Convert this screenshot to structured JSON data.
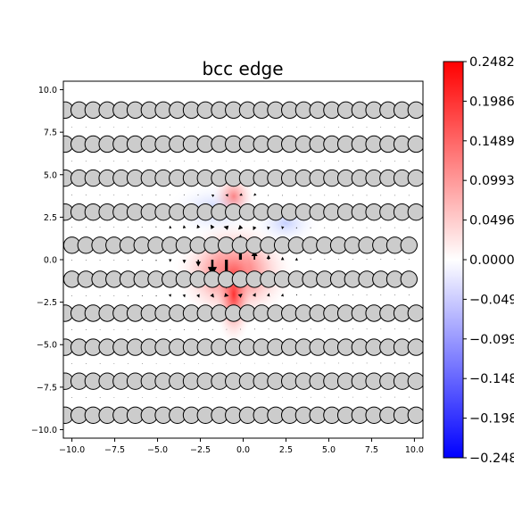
{
  "chart_data": {
    "type": "scatter",
    "title": "bcc edge",
    "xlabel": "",
    "ylabel": "",
    "xlim": [
      -10.5,
      10.5
    ],
    "ylim": [
      -10.5,
      10.5
    ],
    "xticks": [
      -10.0,
      -7.5,
      -5.0,
      -2.5,
      0.0,
      2.5,
      5.0,
      7.5,
      10.0
    ],
    "xtick_labels": [
      "−10.0",
      "−7.5",
      "−5.0",
      "−2.5",
      "0.0",
      "2.5",
      "5.0",
      "7.5",
      "10.0"
    ],
    "yticks": [
      10.0,
      7.5,
      5.0,
      2.5,
      0.0,
      -2.5,
      -5.0,
      -7.5,
      -10.0
    ],
    "ytick_labels": [
      "10.0",
      "7.5",
      "5.0",
      "2.5",
      "0.0",
      "−2.5",
      "−5.0",
      "−7.5",
      "−10.0"
    ],
    "grid": false,
    "background_field": "dislocation strain field (blue–white–red colormap)",
    "atom_rows": [
      {
        "y": 8.8,
        "x_start": -10.4,
        "step": 0.82,
        "count": 26
      },
      {
        "y": 6.8,
        "x_start": -10.4,
        "step": 0.82,
        "count": 26
      },
      {
        "y": 4.8,
        "x_start": -10.4,
        "step": 0.82,
        "count": 26
      },
      {
        "y": 2.8,
        "x_start": -10.4,
        "step": 0.82,
        "count": 26
      },
      {
        "y": 0.85,
        "x_start": -10.0,
        "step": 0.82,
        "count": 25
      },
      {
        "y": -1.15,
        "x_start": -10.0,
        "step": 0.82,
        "count": 25
      },
      {
        "y": -3.15,
        "x_start": -10.4,
        "step": 0.82,
        "count": 26
      },
      {
        "y": -5.15,
        "x_start": -10.4,
        "step": 0.82,
        "count": 26
      },
      {
        "y": -7.15,
        "x_start": -10.4,
        "step": 0.82,
        "count": 26
      },
      {
        "y": -9.15,
        "x_start": -10.4,
        "step": 0.82,
        "count": 26
      }
    ],
    "atom_color": "#cccccc",
    "colorbar": {
      "min": -0.2482,
      "max": 0.2482,
      "tick_labels": [
        "0.2482",
        "0.1986",
        "0.1489",
        "0.0993",
        "0.0496",
        "0.0000",
        "−0.0496",
        "−0.0993",
        "−0.1489",
        "−0.1986",
        "−0.2482"
      ],
      "colors": [
        "#0000ff",
        "#ffffff",
        "#ff0000"
      ]
    }
  }
}
